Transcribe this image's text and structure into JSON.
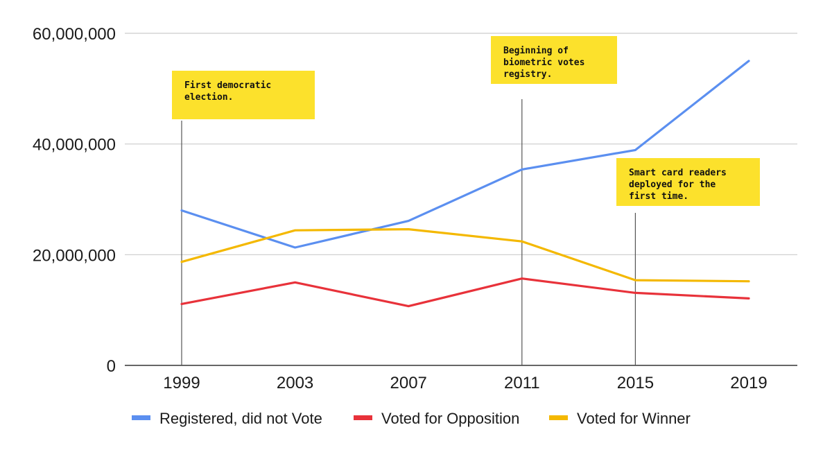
{
  "chart_data": {
    "type": "line",
    "categories": [
      "1999",
      "2003",
      "2007",
      "2011",
      "2015",
      "2019"
    ],
    "ylim": [
      0,
      60000000
    ],
    "yticks": [
      0,
      20000000,
      40000000,
      60000000
    ],
    "ytick_labels": [
      "0",
      "20,000,000",
      "40,000,000",
      "60,000,000"
    ],
    "grid": true,
    "legend_position": "bottom",
    "series": [
      {
        "name": "Registered, did not Vote",
        "color": "#5b8ff0",
        "values": [
          28000000,
          21300000,
          26100000,
          35400000,
          38900000,
          55000000
        ]
      },
      {
        "name": "Voted for Opposition",
        "color": "#e8323a",
        "values": [
          11100000,
          15000000,
          10700000,
          15700000,
          13100000,
          12100000
        ]
      },
      {
        "name": "Voted for Winner",
        "color": "#f4b800",
        "values": [
          18700000,
          24400000,
          24600000,
          22400000,
          15400000,
          15200000
        ]
      }
    ],
    "annotations": [
      {
        "at": "1999",
        "lines": [
          "First democratic",
          "election."
        ]
      },
      {
        "at": "2011",
        "lines": [
          "Beginning of",
          "biometric votes",
          "registry."
        ]
      },
      {
        "at": "2015",
        "lines": [
          "Smart card readers",
          "deployed for the",
          "first time."
        ]
      }
    ],
    "note_color": "#fce12c"
  }
}
